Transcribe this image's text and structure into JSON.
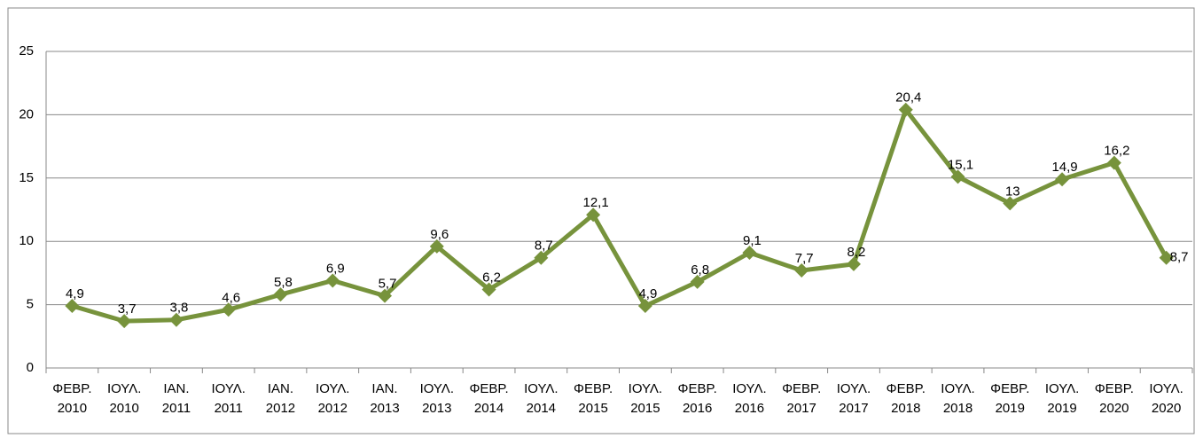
{
  "chart_data": {
    "type": "line",
    "categories": [
      "ΦΕΒΡ. 2010",
      "ΙΟΥΛ. 2010",
      "ΙΑΝ. 2011",
      "ΙΟΥΛ. 2011",
      "ΙΑΝ. 2012",
      "ΙΟΥΛ. 2012",
      "ΙΑΝ. 2013",
      "ΙΟΥΛ. 2013",
      "ΦΕΒΡ. 2014",
      "ΙΟΥΛ. 2014",
      "ΦΕΒΡ. 2015",
      "ΙΟΥΛ. 2015",
      "ΦΕΒΡ. 2016",
      "ΙΟΥΛ. 2016",
      "ΦΕΒΡ. 2017",
      "ΙΟΥΛ. 2017",
      "ΦΕΒΡ. 2018",
      "ΙΟΥΛ. 2018",
      "ΦΕΒΡ. 2019",
      "ΙΟΥΛ. 2019",
      "ΦΕΒΡ. 2020",
      "ΙΟΥΛ. 2020"
    ],
    "values": [
      4.9,
      3.7,
      3.8,
      4.6,
      5.8,
      6.9,
      5.7,
      9.6,
      6.2,
      8.7,
      12.1,
      4.9,
      6.8,
      9.1,
      7.7,
      8.2,
      20.4,
      15.1,
      13,
      14.9,
      16.2,
      8.7
    ],
    "value_labels": [
      "4,9",
      "3,7",
      "3,8",
      "4,6",
      "5,8",
      "6,9",
      "5,7",
      "9,6",
      "6,2",
      "8,7",
      "12,1",
      "4,9",
      "6,8",
      "9,1",
      "7,7",
      "8,2",
      "20,4",
      "15,1",
      "13",
      "14,9",
      "16,2",
      "8,7"
    ],
    "color": "#77933c",
    "ylim": [
      0,
      25
    ],
    "yticks": [
      0,
      5,
      10,
      15,
      20,
      25
    ],
    "grid": true
  }
}
